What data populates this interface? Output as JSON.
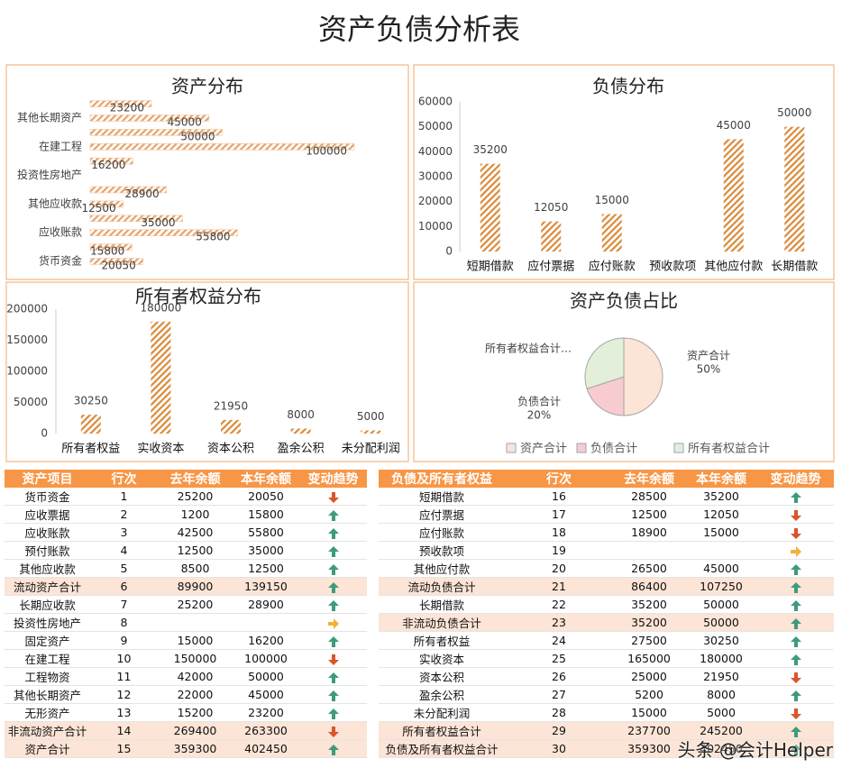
{
  "title": "资产负债分析表",
  "watermark": "头条 @会计Helper",
  "chart_data": [
    {
      "type": "barh",
      "title": "资产分布",
      "color": "#e6a36a",
      "categories": [
        "货币资金",
        null,
        "应收账款",
        null,
        "其他应收款",
        null,
        "投资性房地产",
        null,
        "在建工程",
        null,
        "其他长期资产",
        null
      ],
      "values": [
        20050,
        15800,
        55800,
        35000,
        12500,
        28900,
        null,
        16200,
        100000,
        50000,
        45000,
        23200
      ],
      "xlim": [
        0,
        100000
      ]
    },
    {
      "type": "bar",
      "title": "负债分布",
      "color": "#d98b3a",
      "categories": [
        "短期借款",
        "应付票据",
        "应付账款",
        "预收款项",
        "其他应付款",
        "长期借款"
      ],
      "values": [
        35200,
        12050,
        15000,
        null,
        45000,
        50000
      ],
      "ylim": [
        0,
        60000
      ],
      "yticks": [
        0,
        10000,
        20000,
        30000,
        40000,
        50000,
        60000
      ],
      "grid": false
    },
    {
      "type": "bar",
      "title": "所有者权益分布",
      "color": "#d98b3a",
      "categories": [
        "所有者权益",
        "实收资本",
        "资本公积",
        "盈余公积",
        "未分配利润"
      ],
      "values": [
        30250,
        180000,
        21950,
        8000,
        5000
      ],
      "ylim": [
        0,
        200000
      ],
      "yticks": [
        0,
        50000,
        100000,
        150000,
        200000
      ],
      "grid": false
    },
    {
      "type": "pie",
      "title": "资产负债占比",
      "categories": [
        "资产合计",
        "负债合计",
        "所有者权益合计"
      ],
      "slice_labels": [
        "资产合计",
        "负债合计",
        "所有者权益合计…"
      ],
      "values": [
        50,
        20,
        30
      ],
      "value_labels": [
        "50%",
        "20%",
        null
      ],
      "colors": [
        "#fce4d6",
        "#f8cbd0",
        "#e2f0d9"
      ],
      "legend": "bottom"
    }
  ],
  "tables": [
    {
      "columns": [
        "资产项目",
        "行次",
        "去年余额",
        "本年余额",
        "变动趋势"
      ],
      "rows": [
        [
          "货币资金",
          1,
          25200,
          20050
        ],
        [
          "应收票据",
          2,
          1200,
          15800
        ],
        [
          "应收账款",
          3,
          42500,
          55800
        ],
        [
          "预付账款",
          4,
          12500,
          35000
        ],
        [
          "其他应收款",
          5,
          8500,
          12500
        ],
        [
          "流动资产合计",
          6,
          89900,
          139150
        ],
        [
          "长期应收款",
          7,
          25200,
          28900
        ],
        [
          "投资性房地产",
          8,
          null,
          null
        ],
        [
          "固定资产",
          9,
          15000,
          16200
        ],
        [
          "在建工程",
          10,
          150000,
          100000
        ],
        [
          "工程物资",
          11,
          42000,
          50000
        ],
        [
          "其他长期资产",
          12,
          22000,
          45000
        ],
        [
          "无形资产",
          13,
          15200,
          23200
        ],
        [
          "非流动资产合计",
          14,
          269400,
          263300
        ],
        [
          "资产合计",
          15,
          359300,
          402450
        ]
      ]
    },
    {
      "columns": [
        "负债及所有者权益",
        "行次",
        "去年余额",
        "本年余额",
        "变动趋势"
      ],
      "rows": [
        [
          "短期借款",
          16,
          28500,
          35200
        ],
        [
          "应付票据",
          17,
          12500,
          12050
        ],
        [
          "应付账款",
          18,
          18900,
          15000
        ],
        [
          "预收款项",
          19,
          null,
          null
        ],
        [
          "其他应付款",
          20,
          26500,
          45000
        ],
        [
          "流动负债合计",
          21,
          86400,
          107250
        ],
        [
          "长期借款",
          22,
          35200,
          50000
        ],
        [
          "非流动负债合计",
          23,
          35200,
          50000
        ],
        [
          "所有者权益",
          24,
          27500,
          30250
        ],
        [
          "实收资本",
          25,
          165000,
          180000
        ],
        [
          "资本公积",
          26,
          25000,
          21950
        ],
        [
          "盈余公积",
          27,
          5200,
          8000
        ],
        [
          "未分配利润",
          28,
          15000,
          5000
        ],
        [
          "所有者权益合计",
          29,
          237700,
          245200
        ],
        [
          "负债及所有者权益合计",
          30,
          359300,
          402450
        ]
      ]
    }
  ]
}
